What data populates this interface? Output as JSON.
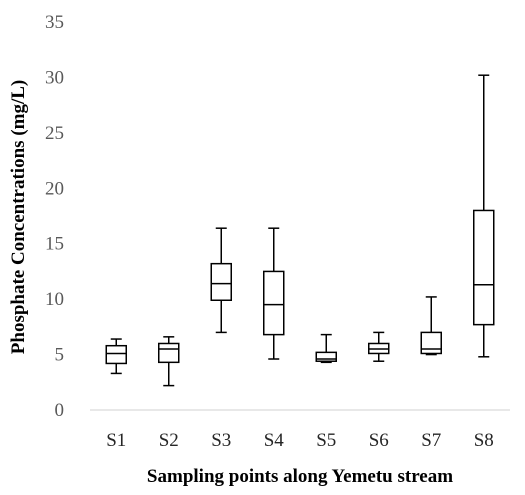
{
  "chart_data": {
    "type": "box",
    "xlabel": "Sampling points along Yemetu stream",
    "ylabel": "Phosphate Concentrations (mg/L)",
    "ylim": [
      0,
      35
    ],
    "yticks": [
      0,
      5,
      10,
      15,
      20,
      25,
      30,
      35
    ],
    "grid": false,
    "categories": [
      "S1",
      "S2",
      "S3",
      "S4",
      "S5",
      "S6",
      "S7",
      "S8"
    ],
    "boxes": [
      {
        "name": "S1",
        "min": 3.3,
        "q1": 4.2,
        "median": 5.1,
        "q3": 5.8,
        "max": 6.4
      },
      {
        "name": "S2",
        "min": 2.2,
        "q1": 4.3,
        "median": 5.5,
        "q3": 6.0,
        "max": 6.6
      },
      {
        "name": "S3",
        "min": 7.0,
        "q1": 9.9,
        "median": 11.4,
        "q3": 13.2,
        "max": 16.4
      },
      {
        "name": "S4",
        "min": 4.6,
        "q1": 6.8,
        "median": 9.5,
        "q3": 12.5,
        "max": 16.4
      },
      {
        "name": "S5",
        "min": 4.3,
        "q1": 4.4,
        "median": 4.6,
        "q3": 5.2,
        "max": 6.8
      },
      {
        "name": "S6",
        "min": 4.4,
        "q1": 5.1,
        "median": 5.5,
        "q3": 6.0,
        "max": 7.0
      },
      {
        "name": "S7",
        "min": 5.0,
        "q1": 5.1,
        "median": 5.5,
        "q3": 7.0,
        "max": 10.2
      },
      {
        "name": "S8",
        "min": 4.8,
        "q1": 7.7,
        "median": 11.3,
        "q3": 18.0,
        "max": 30.2
      }
    ],
    "colors": {
      "box_stroke": "#000000",
      "axis": "#d9d9d9",
      "tick_text": "#595959",
      "category_text": "#262626",
      "background": "#ffffff"
    }
  }
}
